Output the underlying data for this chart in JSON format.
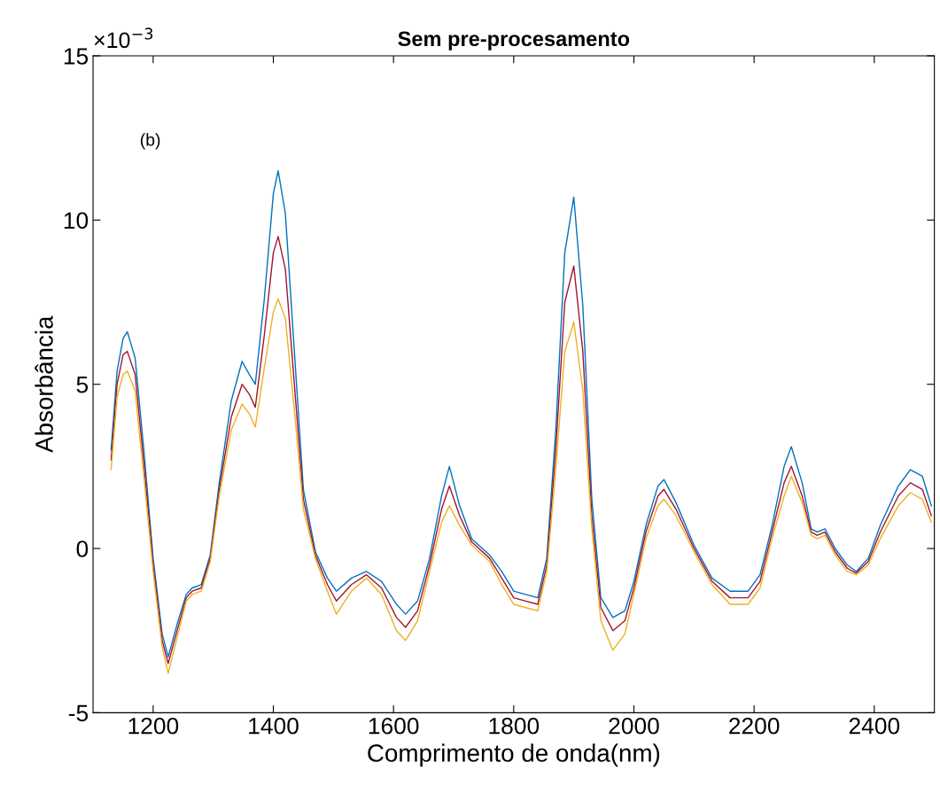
{
  "chart_data": {
    "type": "line",
    "title": "Sem pre-procesamento",
    "xlabel": "Comprimento de onda(nm)",
    "ylabel": "Absorbância",
    "annotations": [
      "×10$^{−3}$",
      "(b)"
    ],
    "x": [
      1130,
      1140,
      1150,
      1157,
      1170,
      1185,
      1200,
      1215,
      1225,
      1240,
      1255,
      1265,
      1280,
      1295,
      1310,
      1330,
      1348,
      1360,
      1370,
      1385,
      1400,
      1408,
      1420,
      1435,
      1450,
      1470,
      1490,
      1505,
      1530,
      1555,
      1580,
      1605,
      1620,
      1640,
      1660,
      1680,
      1693,
      1710,
      1730,
      1760,
      1780,
      1800,
      1820,
      1840,
      1855,
      1870,
      1885,
      1900,
      1915,
      1930,
      1945,
      1965,
      1985,
      2000,
      2020,
      2040,
      2050,
      2070,
      2100,
      2130,
      2160,
      2190,
      2210,
      2230,
      2250,
      2262,
      2280,
      2295,
      2305,
      2318,
      2335,
      2355,
      2370,
      2390,
      2410,
      2440,
      2460,
      2480,
      2495
    ],
    "series": [
      {
        "color": "#0072bd",
        "values": [
          3.0,
          5.4,
          6.4,
          6.6,
          5.8,
          2.9,
          -0.3,
          -2.6,
          -3.3,
          -2.3,
          -1.4,
          -1.2,
          -1.1,
          -0.2,
          2.0,
          4.5,
          5.7,
          5.3,
          5.0,
          7.6,
          10.8,
          11.5,
          10.2,
          6.0,
          1.8,
          -0.1,
          -0.9,
          -1.3,
          -0.9,
          -0.7,
          -1.0,
          -1.7,
          -2.0,
          -1.6,
          -0.3,
          1.6,
          2.5,
          1.3,
          0.3,
          -0.2,
          -0.7,
          -1.3,
          -1.4,
          -1.5,
          -0.3,
          3.6,
          9.0,
          10.7,
          7.4,
          1.5,
          -1.5,
          -2.1,
          -1.9,
          -1.0,
          0.7,
          1.9,
          2.1,
          1.4,
          0.1,
          -0.9,
          -1.3,
          -1.3,
          -0.8,
          0.7,
          2.5,
          3.1,
          2.0,
          0.6,
          0.5,
          0.6,
          0.0,
          -0.5,
          -0.7,
          -0.3,
          0.7,
          1.9,
          2.4,
          2.2,
          1.3
        ]
      },
      {
        "color": "#a2142f",
        "values": [
          2.7,
          5.0,
          5.9,
          6.0,
          5.3,
          2.5,
          -0.5,
          -2.8,
          -3.5,
          -2.5,
          -1.5,
          -1.3,
          -1.2,
          -0.3,
          1.8,
          4.0,
          5.0,
          4.7,
          4.3,
          6.5,
          9.0,
          9.5,
          8.5,
          5.0,
          1.5,
          -0.2,
          -1.1,
          -1.6,
          -1.1,
          -0.8,
          -1.2,
          -2.1,
          -2.4,
          -1.9,
          -0.5,
          1.2,
          1.9,
          1.0,
          0.2,
          -0.3,
          -0.9,
          -1.5,
          -1.6,
          -1.7,
          -0.5,
          3.0,
          7.5,
          8.6,
          6.0,
          1.0,
          -1.8,
          -2.5,
          -2.2,
          -1.2,
          0.5,
          1.6,
          1.8,
          1.2,
          0.0,
          -1.0,
          -1.5,
          -1.5,
          -1.0,
          0.5,
          2.0,
          2.5,
          1.6,
          0.5,
          0.4,
          0.5,
          -0.1,
          -0.6,
          -0.75,
          -0.4,
          0.5,
          1.6,
          2.0,
          1.8,
          1.0
        ]
      },
      {
        "color": "#edb120",
        "values": [
          2.4,
          4.6,
          5.3,
          5.4,
          4.8,
          2.1,
          -0.7,
          -3.0,
          -3.8,
          -2.7,
          -1.6,
          -1.4,
          -1.3,
          -0.4,
          1.6,
          3.6,
          4.4,
          4.1,
          3.7,
          5.5,
          7.2,
          7.6,
          7.0,
          4.2,
          1.2,
          -0.3,
          -1.3,
          -2.0,
          -1.3,
          -0.9,
          -1.4,
          -2.5,
          -2.8,
          -2.2,
          -0.7,
          0.8,
          1.3,
          0.7,
          0.1,
          -0.4,
          -1.1,
          -1.7,
          -1.8,
          -1.9,
          -0.7,
          2.4,
          6.0,
          6.9,
          4.8,
          0.6,
          -2.2,
          -3.1,
          -2.6,
          -1.4,
          0.3,
          1.3,
          1.5,
          1.0,
          -0.1,
          -1.1,
          -1.7,
          -1.7,
          -1.2,
          0.3,
          1.6,
          2.2,
          1.4,
          0.4,
          0.3,
          0.4,
          -0.2,
          -0.7,
          -0.8,
          -0.5,
          0.3,
          1.3,
          1.7,
          1.5,
          0.8
        ]
      }
    ],
    "xlim": [
      1100,
      2500
    ],
    "xticks": [
      1200,
      1400,
      1600,
      1800,
      2000,
      2200,
      2400
    ],
    "ylim": [
      -5,
      15
    ],
    "yticks": [
      -5,
      0,
      5,
      10,
      15
    ],
    "grid": false,
    "marker": "none",
    "line_style": "solid"
  }
}
